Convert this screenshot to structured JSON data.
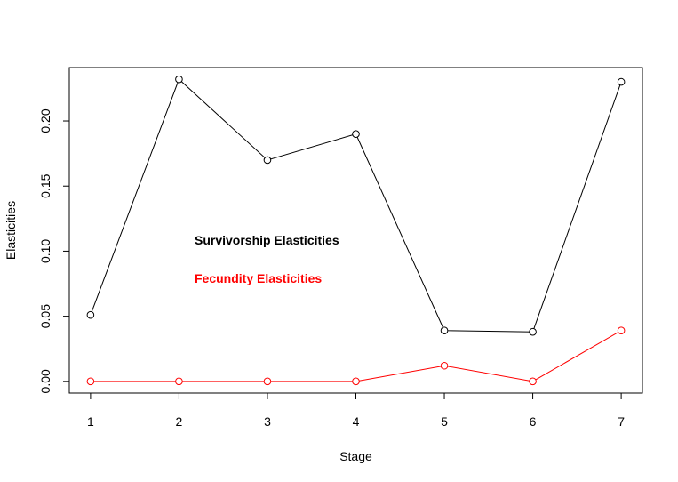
{
  "chart_data": {
    "type": "line",
    "xlabel": "Stage",
    "ylabel": "Elasticities",
    "x": [
      1,
      2,
      3,
      4,
      5,
      6,
      7
    ],
    "x_ticks": [
      "1",
      "2",
      "3",
      "4",
      "5",
      "6",
      "7"
    ],
    "y_ticks": [
      "0.00",
      "0.05",
      "0.10",
      "0.15",
      "0.20"
    ],
    "xlim": [
      0.76,
      7.24
    ],
    "ylim": [
      -0.009,
      0.241
    ],
    "grid": false,
    "legend": "none",
    "series": [
      {
        "values": [
          0.051,
          0.232,
          0.17,
          0.19,
          0.039,
          0.038,
          0.23
        ],
        "color": "#000000",
        "marker": "open-circle"
      },
      {
        "values": [
          0.0,
          0.0,
          0.0,
          0.0,
          0.012,
          0.0,
          0.039
        ],
        "color": "#ff0000",
        "marker": "open-circle"
      }
    ],
    "annotations": [
      {
        "text": "Survivorship Elasticities",
        "color": "#000000"
      },
      {
        "text": "Fecundity Elasticities",
        "color": "#ff0000"
      }
    ]
  }
}
